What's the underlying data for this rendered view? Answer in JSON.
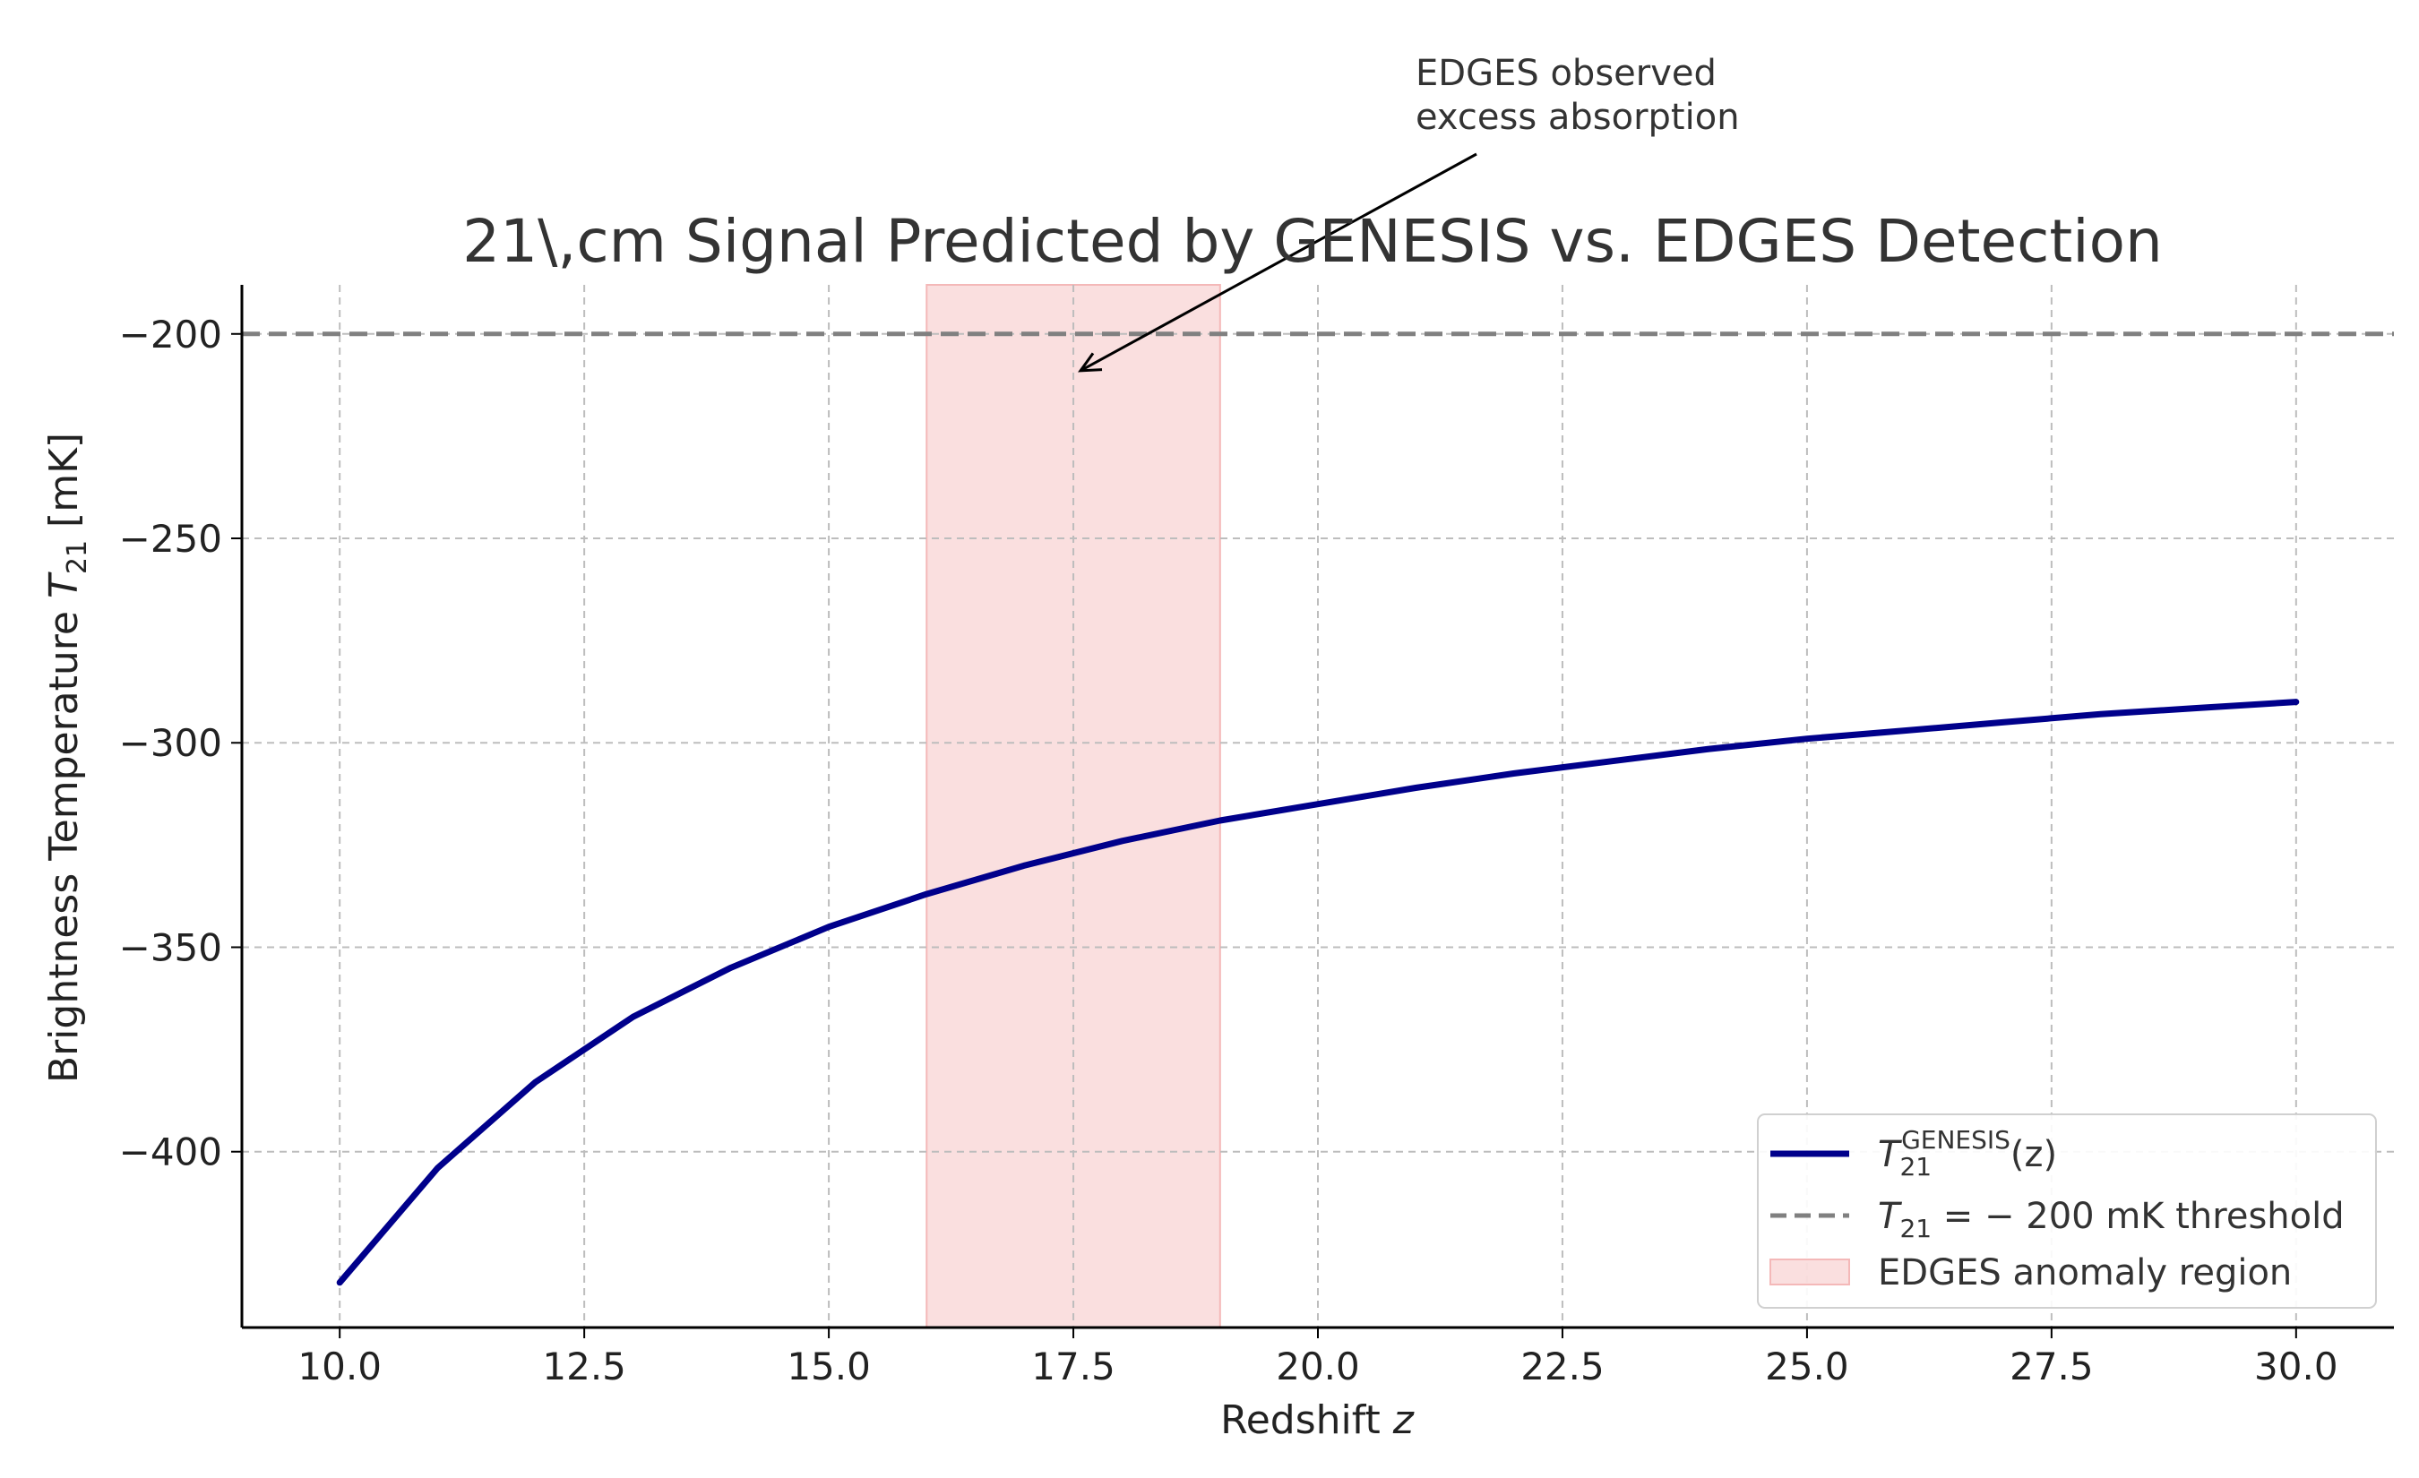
{
  "chart_data": {
    "type": "line",
    "title": "21\\,cm Signal Predicted by GENESIS vs. EDGES Detection",
    "xlabel": "Redshift",
    "xlabel_var": "z",
    "ylabel": "Brightness Temperature",
    "ylabel_var": "T",
    "ylabel_sub": "21",
    "ylabel_unit": "[mK]",
    "xlim": [
      9,
      31
    ],
    "ylim": [
      -443,
      -188
    ],
    "xticks": [
      10.0,
      12.5,
      15.0,
      17.5,
      20.0,
      22.5,
      25.0,
      27.5,
      30.0
    ],
    "xtick_labels": [
      "10.0",
      "12.5",
      "15.0",
      "17.5",
      "20.0",
      "22.5",
      "25.0",
      "27.5",
      "30.0"
    ],
    "yticks": [
      -400,
      -350,
      -300,
      -250,
      -200
    ],
    "ytick_labels": [
      "−400",
      "−350",
      "−300",
      "−250",
      "−200"
    ],
    "grid": true,
    "series": [
      {
        "name": "T_21^GENESIS(z)",
        "color": "#00008b",
        "x": [
          10,
          11,
          12,
          13,
          14,
          15,
          16,
          17,
          18,
          19,
          20,
          21,
          22,
          23,
          24,
          25,
          26,
          27,
          28,
          29,
          30
        ],
        "y": [
          -432,
          -404,
          -383,
          -367,
          -355,
          -345,
          -337,
          -330,
          -324,
          -319,
          -315,
          -311,
          -307.5,
          -304.5,
          -301.5,
          -299,
          -297,
          -295,
          -293,
          -291.5,
          -290
        ]
      }
    ],
    "threshold": {
      "value": -200,
      "color": "#808080",
      "label": "T_21 = −200 mK threshold"
    },
    "region": {
      "x0": 16,
      "x1": 19,
      "color": "#f4b8b8",
      "label": "EDGES anomaly region"
    },
    "annotation": {
      "lines": [
        "EDGES observed",
        "excess absorption"
      ],
      "arrow_to": [
        17.5,
        -209
      ]
    },
    "legend": {
      "position": "lower-right",
      "entries": [
        {
          "kind": "line",
          "var": "T",
          "sub": "21",
          "sup": "GENESIS",
          "suffix": "(z)"
        },
        {
          "kind": "dashed",
          "var": "T",
          "sub": "21",
          "suffix": " = − 200 mK threshold"
        },
        {
          "kind": "patch",
          "text": "EDGES anomaly region"
        }
      ]
    }
  }
}
